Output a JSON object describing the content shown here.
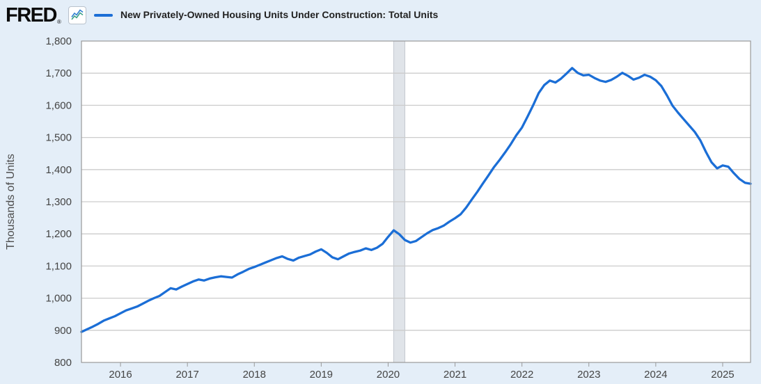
{
  "header": {
    "logo_text": "FRED",
    "registered_mark": "®",
    "series_title": "New Privately-Owned Housing Units Under Construction: Total Units"
  },
  "y_axis": {
    "title": "Thousands of Units",
    "min": 800,
    "max": 1800,
    "step": 100
  },
  "x_axis": {
    "years": [
      2016,
      2017,
      2018,
      2019,
      2020,
      2021,
      2022,
      2023,
      2024,
      2025
    ]
  },
  "colors": {
    "series_line": "#1b6ed6",
    "icon_line_blue": "#2f7fd0",
    "icon_line_teal": "#3ba187",
    "background": "#e4eef8",
    "plot_background": "#ffffff",
    "gridline": "#cccccc",
    "plot_border": "#999999",
    "recession_fill": "#e0e4e9",
    "recession_edge": "#c3c9d0",
    "axis_text": "#444444",
    "title_text": "#222222"
  },
  "chart_data": {
    "type": "line",
    "title": "New Privately-Owned Housing Units Under Construction: Total Units",
    "ylabel": "Thousands of Units",
    "xlabel": "",
    "frequency": "monthly",
    "start": "2015-06",
    "end": "2025-06",
    "ylim": [
      800,
      1800
    ],
    "grid": true,
    "legend_position": "top",
    "recession_band": {
      "start": "2020-02",
      "end": "2020-04"
    },
    "values": [
      895,
      903,
      911,
      920,
      930,
      937,
      944,
      953,
      962,
      968,
      974,
      983,
      992,
      1000,
      1007,
      1019,
      1031,
      1027,
      1036,
      1044,
      1052,
      1058,
      1055,
      1061,
      1065,
      1068,
      1066,
      1064,
      1074,
      1082,
      1091,
      1097,
      1104,
      1111,
      1118,
      1125,
      1130,
      1122,
      1117,
      1126,
      1131,
      1136,
      1145,
      1152,
      1141,
      1127,
      1121,
      1130,
      1139,
      1144,
      1148,
      1155,
      1150,
      1157,
      1169,
      1191,
      1211,
      1199,
      1181,
      1173,
      1178,
      1190,
      1202,
      1212,
      1218,
      1226,
      1238,
      1249,
      1261,
      1282,
      1307,
      1331,
      1357,
      1382,
      1408,
      1430,
      1454,
      1479,
      1507,
      1531,
      1565,
      1600,
      1638,
      1663,
      1677,
      1671,
      1683,
      1699,
      1716,
      1701,
      1693,
      1695,
      1685,
      1677,
      1673,
      1679,
      1689,
      1701,
      1692,
      1680,
      1686,
      1695,
      1689,
      1678,
      1660,
      1631,
      1599,
      1577,
      1557,
      1537,
      1517,
      1491,
      1455,
      1423,
      1404,
      1413,
      1409,
      1389,
      1371,
      1359,
      1356
    ]
  }
}
